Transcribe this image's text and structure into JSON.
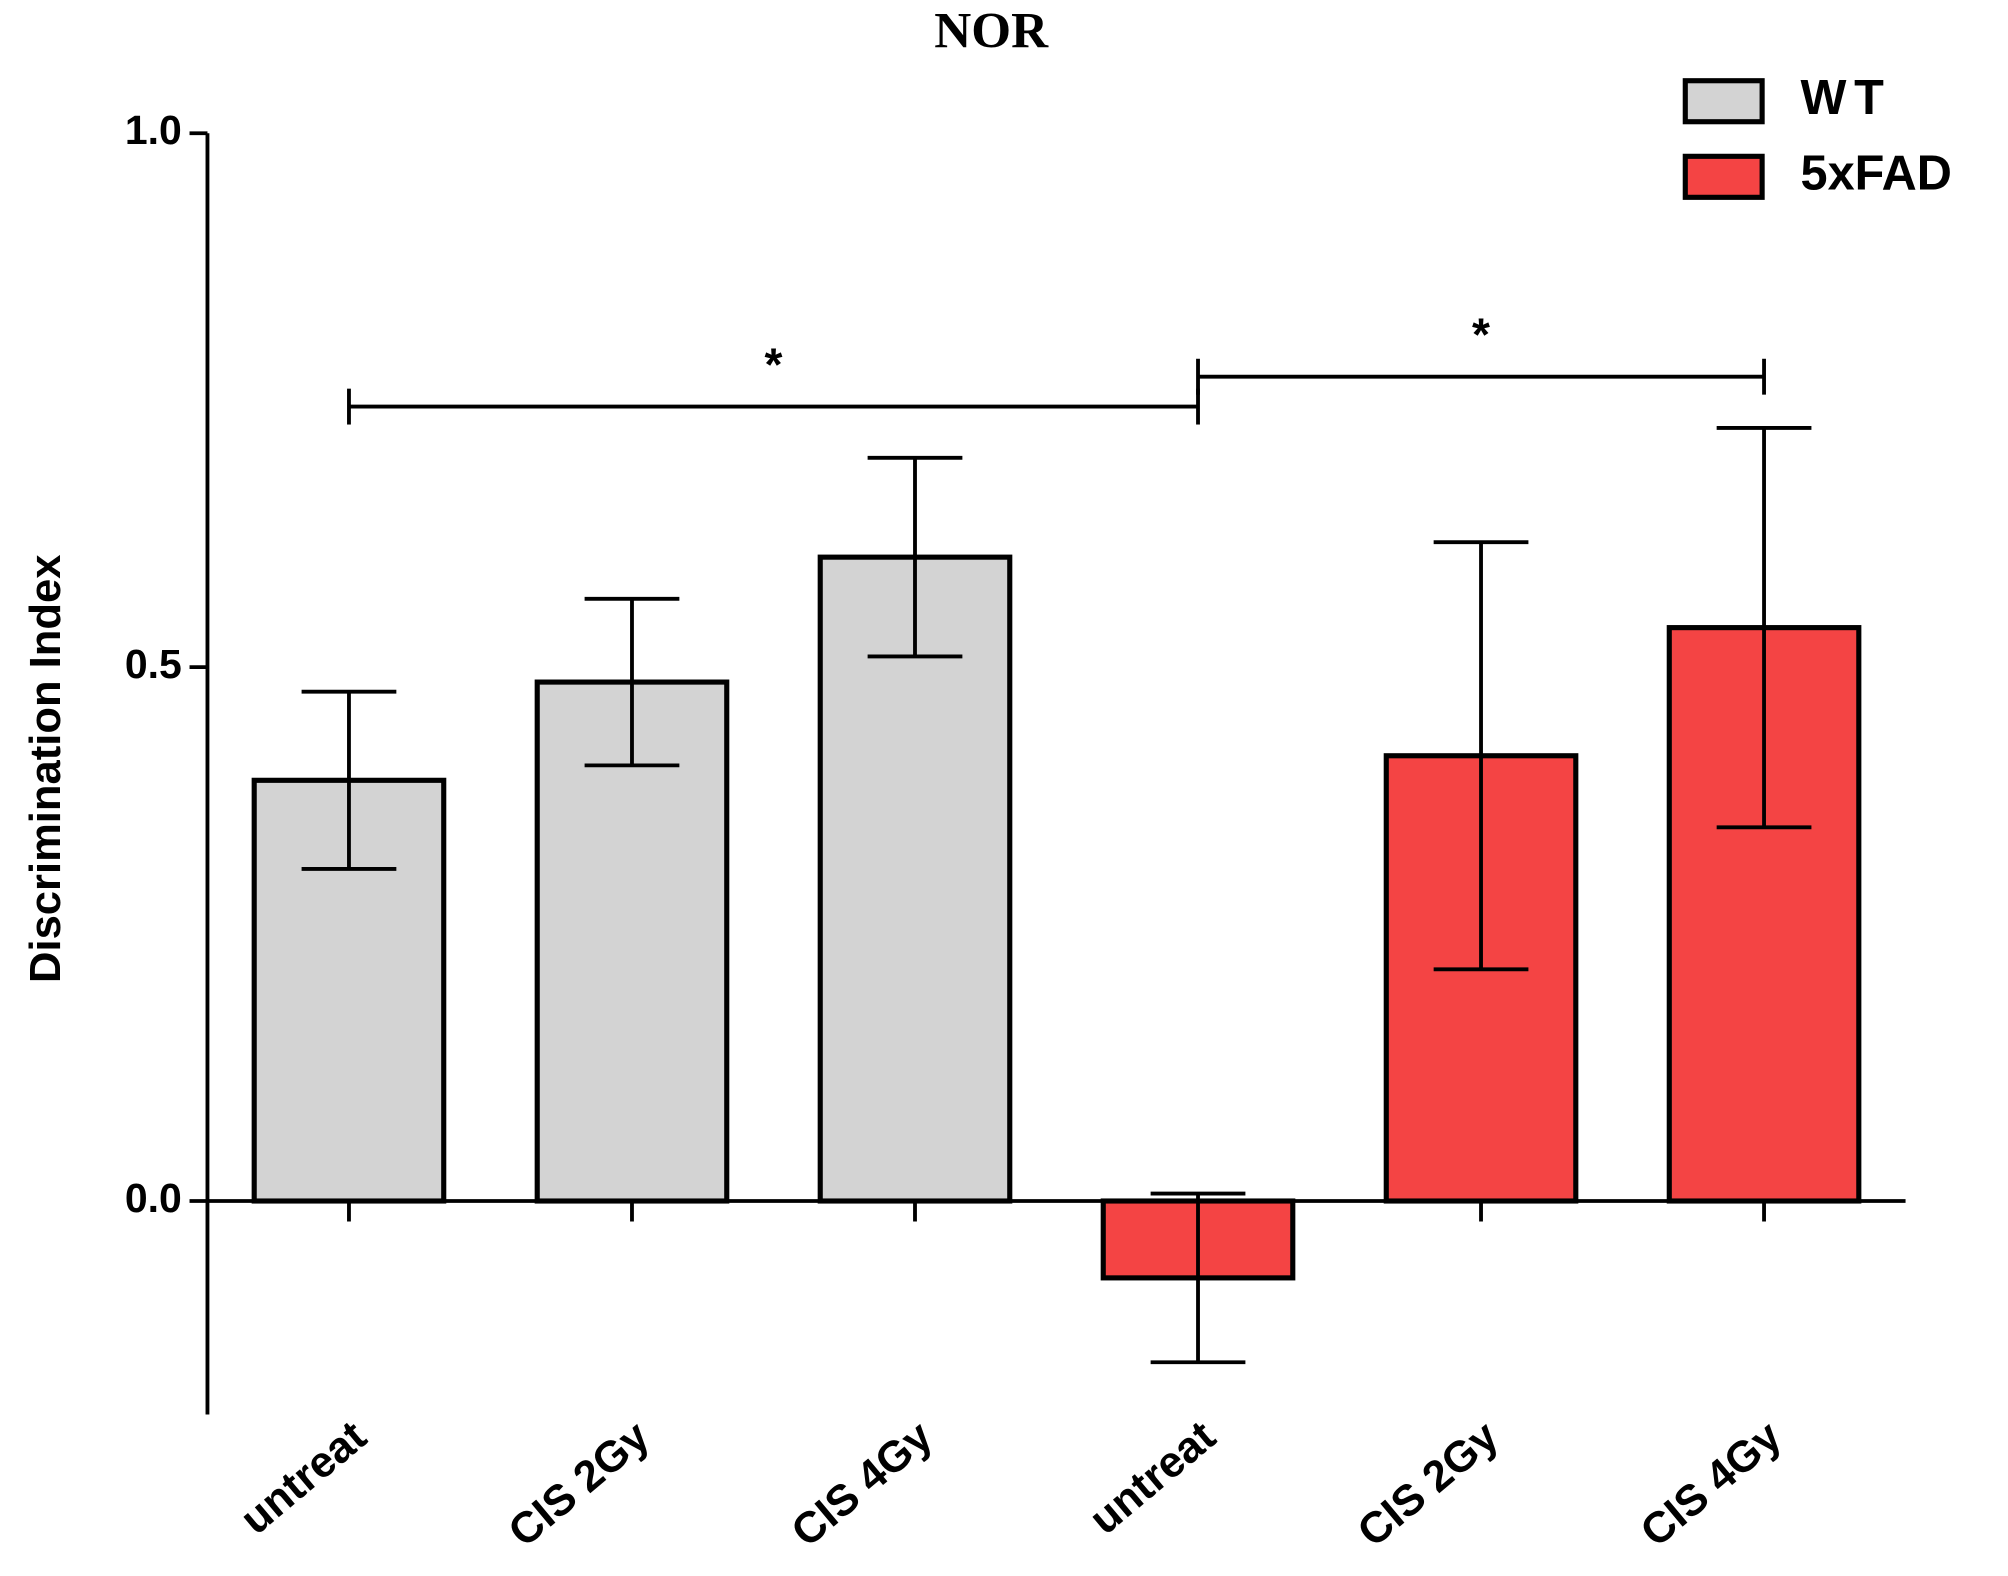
{
  "chart_data": {
    "type": "bar",
    "title": "NOR",
    "y_label": "Discrimination Index",
    "categories": [
      "untreat",
      "CIS 2Gy",
      "CIS 4Gy",
      "untreat",
      "CIS 2Gy",
      "CIS 4Gy"
    ],
    "series": [
      {
        "name": "WT",
        "color": "#d3d3d3",
        "values": [
          0.394,
          0.486,
          0.603,
          null,
          null,
          null
        ],
        "errors": [
          0.083,
          0.078,
          0.093,
          null,
          null,
          null
        ]
      },
      {
        "name": "5xFAD",
        "color": "#f44444",
        "values": [
          null,
          null,
          null,
          -0.072,
          0.417,
          0.537
        ],
        "errors": [
          null,
          null,
          null,
          0.079,
          0.2,
          0.187
        ]
      }
    ],
    "ylim": [
      -0.2,
      1.0
    ],
    "yticks": [
      {
        "value": 0,
        "label": "0.0"
      },
      0.5,
      {
        "value": 1,
        "label": "1.0"
      }
    ],
    "legend": "top-right",
    "annotations": [
      {
        "text": "*",
        "from": 0,
        "to": 3
      },
      {
        "text": "*",
        "from": 3,
        "to": 5
      }
    ]
  }
}
